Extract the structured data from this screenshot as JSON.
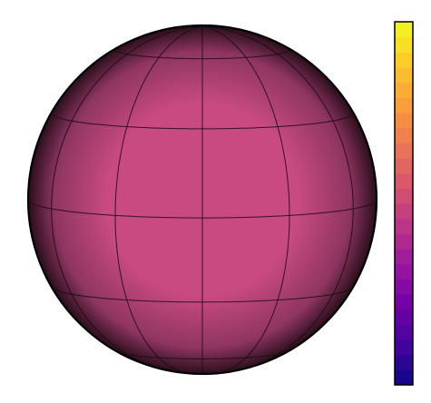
{
  "globe": {
    "surface_color": "#c84a80",
    "limb_color": "#2a0e1c",
    "graticule_color": "#1a0a12",
    "outline_color": "#000000",
    "latitudes_deg": [
      -60,
      -30,
      0,
      30,
      60
    ],
    "longitudes_deg": [
      -60,
      -30,
      0,
      30,
      60,
      90
    ]
  },
  "colorbar": {
    "colormap": "plasma",
    "segments": 24,
    "colors": [
      "#0d0887",
      "#46039f",
      "#7201a8",
      "#9c179e",
      "#bd3786",
      "#d8576b",
      "#ed7953",
      "#fb9f3a",
      "#fdca26",
      "#f0f921"
    ],
    "border_color": "#000000",
    "tick_labels": []
  }
}
